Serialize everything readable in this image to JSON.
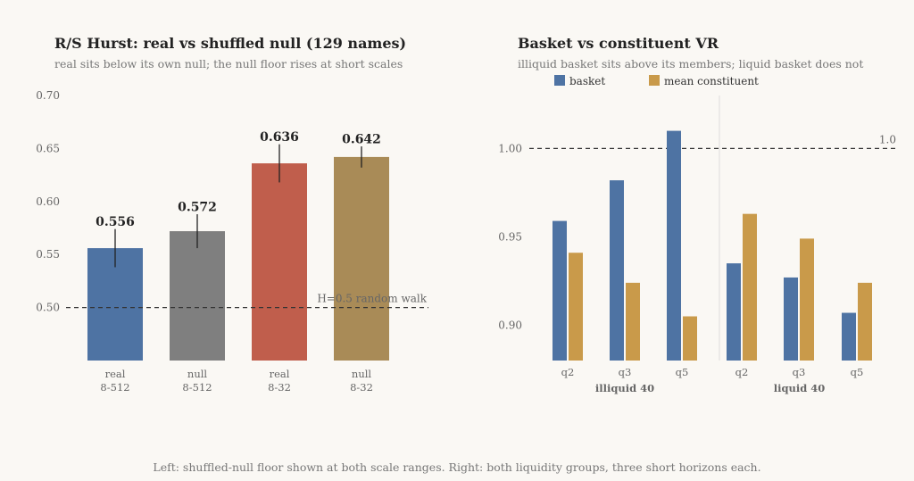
{
  "caption": "Left: shuffled-null floor shown at both scale ranges. Right: both liquidity groups, three short horizons each.",
  "chart_data": [
    {
      "type": "bar",
      "title": "R/S Hurst: real vs shuffled null (129 names)",
      "subtitle": "real sits below its own null; the null floor rises at short scales",
      "categories": [
        {
          "line1": "real",
          "line2": "8-512"
        },
        {
          "line1": "null",
          "line2": "8-512"
        },
        {
          "line1": "real",
          "line2": "8-32"
        },
        {
          "line1": "null",
          "line2": "8-32"
        }
      ],
      "values": [
        0.556,
        0.572,
        0.636,
        0.642
      ],
      "value_labels": [
        "0.556",
        "0.572",
        "0.636",
        "0.642"
      ],
      "error_ranges": [
        [
          0.538,
          0.574
        ],
        [
          0.556,
          0.588
        ],
        [
          0.618,
          0.654
        ],
        [
          0.632,
          0.652
        ]
      ],
      "colors": [
        "#4e73a3",
        "#7f7f7f",
        "#c05e4c",
        "#a98b57"
      ],
      "ylim": [
        0.45,
        0.7
      ],
      "yticks": [
        "0.50",
        "0.55",
        "0.60",
        "0.65",
        "0.70"
      ],
      "reference_line": {
        "y": 0.5,
        "label": "H=0.5 random walk"
      },
      "grid": false
    },
    {
      "type": "bar",
      "title": "Basket vs constituent VR",
      "subtitle": "illiquid basket sits above its members; liquid basket does not",
      "legend_position": "top-left",
      "groups": [
        {
          "name": "illiquid 40",
          "categories": [
            "q2",
            "q3",
            "q5"
          ]
        },
        {
          "name": "liquid 40",
          "categories": [
            "q2",
            "q3",
            "q5"
          ]
        }
      ],
      "series": [
        {
          "name": "basket",
          "color": "#4e73a3",
          "values": [
            0.959,
            0.982,
            1.01,
            0.935,
            0.927,
            0.907
          ]
        },
        {
          "name": "mean constituent",
          "color": "#c99a4a",
          "values": [
            0.941,
            0.924,
            0.905,
            0.963,
            0.949,
            0.924
          ]
        }
      ],
      "ylim": [
        0.88,
        1.03
      ],
      "yticks": [
        "0.90",
        "0.95",
        "1.00"
      ],
      "reference_line": {
        "y": 1.0,
        "label": "1.0"
      },
      "grid": false
    }
  ]
}
